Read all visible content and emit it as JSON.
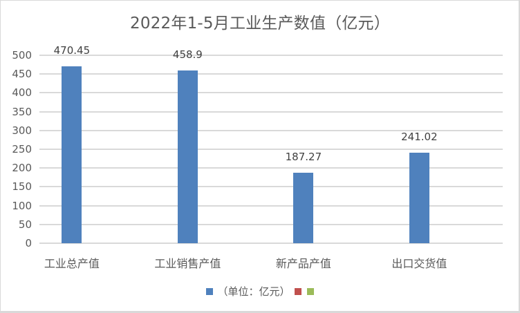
{
  "chart_data": {
    "type": "bar",
    "title": "2022年1-5月工业生产数值（亿元）",
    "categories": [
      "工业总产值",
      "工业销售产值",
      "新产品产值",
      "出口交货值"
    ],
    "series": [
      {
        "name": "（单位：亿元）",
        "values": [
          470.45,
          458.9,
          187.27,
          241.02
        ],
        "color": "#4f81bd"
      },
      {
        "name": "",
        "values": [],
        "color": "#c0504d"
      },
      {
        "name": "",
        "values": [],
        "color": "#9bbb59"
      }
    ],
    "data_labels": [
      "470.45",
      "458.9",
      "187.27",
      "241.02"
    ],
    "xlabel": "",
    "ylabel": "",
    "ylim": [
      0,
      500
    ],
    "yticks": [
      "0",
      "50",
      "100",
      "150",
      "200",
      "250",
      "300",
      "350",
      "400",
      "450",
      "500"
    ],
    "grid": true,
    "legend_position": "bottom"
  },
  "legend": {
    "items": [
      {
        "label": "（单位：亿元）",
        "color": "#4f81bd"
      },
      {
        "label": "",
        "color": "#c0504d"
      },
      {
        "label": "",
        "color": "#9bbb59"
      }
    ]
  }
}
